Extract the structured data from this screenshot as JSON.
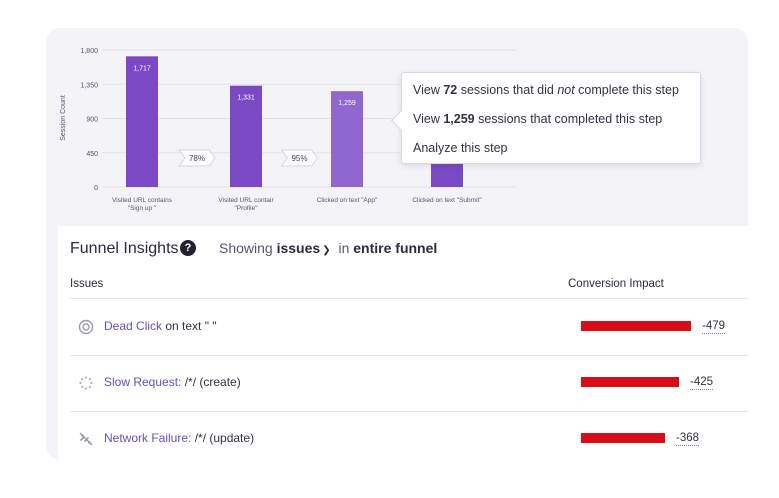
{
  "chart_data": {
    "type": "bar",
    "title": "",
    "xlabel": "",
    "ylabel": "Session Count",
    "ylim": [
      0,
      1800
    ],
    "yticks": [
      "0",
      "450",
      "900",
      "1,350",
      "1,800"
    ],
    "categories": [
      "Visited URL contains \"Sign up \"",
      "Visited URL contair \"Profile\"",
      "Clicked on text \"App\"",
      "Clicked on text \"Submit\""
    ],
    "values": [
      1717,
      1331,
      1259,
      1187
    ],
    "value_labels": [
      "1,717",
      "1,331",
      "1,259",
      ""
    ],
    "conversion_labels": [
      "78%",
      "95%"
    ],
    "grid": true,
    "colors": {
      "bar": "#7b49c4",
      "bar_selected": "#8f67cf"
    }
  },
  "tooltip": {
    "row1": {
      "pre": "View ",
      "num": "72",
      "mid": " sessions that did ",
      "em": "not",
      "post": " complete this step"
    },
    "row2": {
      "pre": "View ",
      "num": "1,259",
      "post": " sessions that completed this step"
    },
    "row3": "Analyze this step"
  },
  "insights": {
    "title": "Funnel Insights",
    "help_icon": "?",
    "showing_prefix": "Showing",
    "filter_value": "issues",
    "scope_prefix": "in",
    "scope_value": "entire funnel",
    "col_issues": "Issues",
    "col_impact": "Conversion Impact",
    "rows": [
      {
        "icon": "dead-click-icon",
        "link": "Dead Click",
        "rest": " on text \" \"",
        "impact": "-479",
        "bar_fraction": 1.0
      },
      {
        "icon": "slow-request-icon",
        "link": "Slow Request:",
        "rest": " /*/ (create)",
        "impact": "-425",
        "bar_fraction": 0.887
      },
      {
        "icon": "network-failure-icon",
        "link": "Network Failure:",
        "rest": " /*/ (update)",
        "impact": "-368",
        "bar_fraction": 0.768
      }
    ],
    "colors": {
      "link": "#6b4fb8",
      "impact_bar": "#d80d1a"
    }
  }
}
